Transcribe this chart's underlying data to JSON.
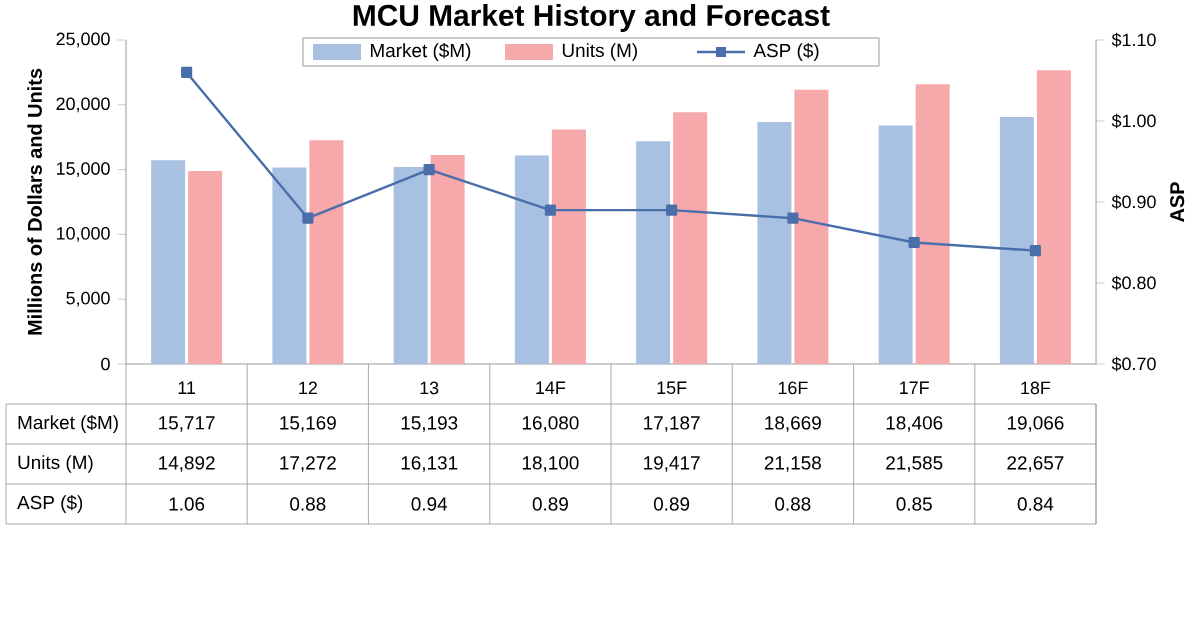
{
  "chart_data": {
    "type": "bar",
    "title": "MCU Market History and Forecast",
    "ylabel": "Millions of Dollars and Units",
    "y2label": "ASP",
    "categories": [
      "11",
      "12",
      "13",
      "14F",
      "15F",
      "16F",
      "17F",
      "18F"
    ],
    "series": [
      {
        "name": "Market ($M)",
        "color": "#a8c0e2",
        "values": [
          15717,
          15169,
          15193,
          16080,
          17187,
          18669,
          18406,
          19066
        ],
        "value_labels": [
          "15,717",
          "15,169",
          "15,193",
          "16,080",
          "17,187",
          "18,669",
          "18,406",
          "19,066"
        ]
      },
      {
        "name": "Units (M)",
        "color": "#f7a8aa",
        "values": [
          14892,
          17272,
          16131,
          18100,
          19417,
          21158,
          21585,
          22657
        ],
        "value_labels": [
          "14,892",
          "17,272",
          "16,131",
          "18,100",
          "19,417",
          "21,158",
          "21,585",
          "22,657"
        ]
      },
      {
        "name": "ASP ($)",
        "type": "line",
        "axis": "y2",
        "color": "#4a6ea9",
        "values": [
          1.06,
          0.88,
          0.94,
          0.89,
          0.89,
          0.88,
          0.85,
          0.84
        ],
        "value_labels": [
          "1.06",
          "0.88",
          "0.94",
          "0.89",
          "0.89",
          "0.88",
          "0.85",
          "0.84"
        ]
      }
    ],
    "ylim": [
      0,
      25000
    ],
    "yticks": [
      0,
      {
        "value": 5000,
        "label": "5,000"
      },
      {
        "value": 10000,
        "label": "10,000"
      },
      {
        "value": 15000,
        "label": "15,000"
      },
      {
        "value": 20000,
        "label": "20,000"
      },
      {
        "value": 25000,
        "label": "25,000"
      }
    ],
    "y2lim": [
      0.7,
      1.1
    ],
    "y2ticks": [
      {
        "value": 0.7,
        "label": "$0.70"
      },
      {
        "value": 0.8,
        "label": "$0.80"
      },
      {
        "value": 0.9,
        "label": "$0.90"
      },
      {
        "value": 1.0,
        "label": "$1.00"
      },
      {
        "value": 1.1,
        "label": "$1.10"
      }
    ],
    "legend": "top",
    "marker": "square"
  }
}
